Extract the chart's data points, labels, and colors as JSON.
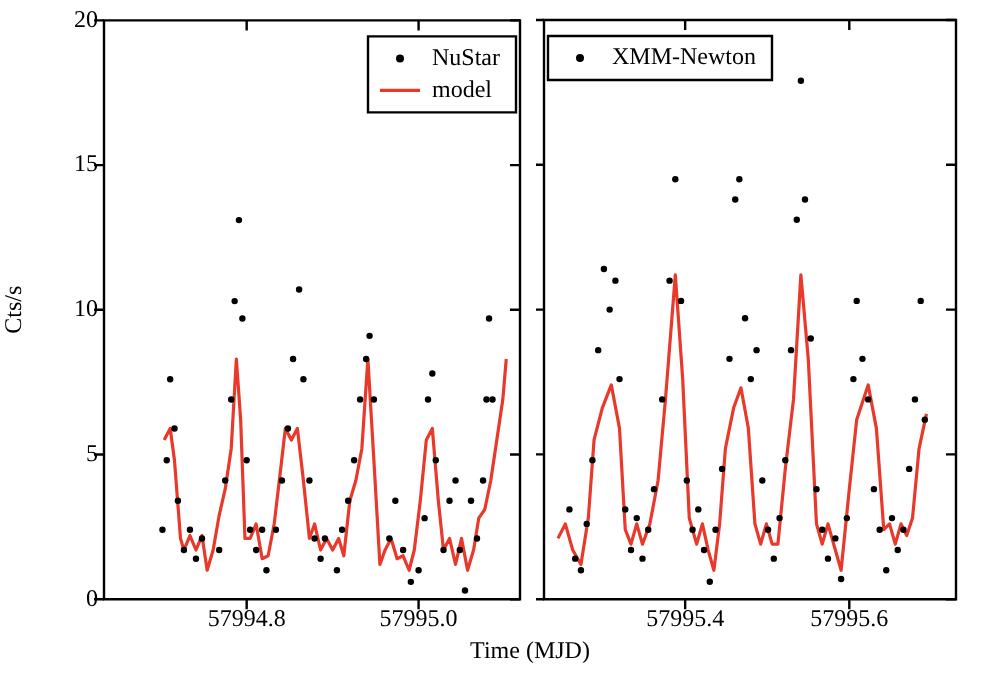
{
  "chart_data": [
    {
      "type": "scatter",
      "ylabel": "Cts/s",
      "xlabel": "Time (MJD)",
      "xlim": [
        57994.634,
        57995.118
      ],
      "xticks": [
        {
          "value": 57994.8,
          "label": "57994.8"
        },
        {
          "value": 57995,
          "label": "57995.0"
        }
      ],
      "ylim": [
        0,
        20
      ],
      "yticks": [
        0,
        5,
        10,
        15,
        20
      ],
      "legend": "top right",
      "grid": false,
      "series": [
        {
          "name": "NuStar",
          "marker": "circle",
          "color": "#000000",
          "x": [
            57994.702,
            57994.707,
            57994.711,
            57994.716,
            57994.72,
            57994.727,
            57994.734,
            57994.741,
            57994.748,
            57994.768,
            57994.775,
            57994.782,
            57994.786,
            57994.791,
            57994.795,
            57994.8,
            57994.804,
            57994.811,
            57994.818,
            57994.823,
            57994.834,
            57994.841,
            57994.848,
            57994.854,
            57994.861,
            57994.866,
            57994.873,
            57994.879,
            57994.886,
            57994.891,
            57994.905,
            57994.911,
            57994.918,
            57994.925,
            57994.932,
            57994.939,
            57994.943,
            57994.948,
            57994.966,
            57994.973,
            57994.982,
            57994.991,
            57995.0,
            57995.007,
            57995.011,
            57995.016,
            57995.02,
            57995.029,
            57995.036,
            57995.043,
            57995.048,
            57995.054,
            57995.061,
            57995.068,
            57995.075,
            57995.079,
            57995.082,
            57995.086
          ],
          "values": [
            2.4,
            4.8,
            7.6,
            5.9,
            3.4,
            1.7,
            2.4,
            1.4,
            2.1,
            1.7,
            4.1,
            6.9,
            10.3,
            13.1,
            9.7,
            4.8,
            2.4,
            1.7,
            2.4,
            1.0,
            2.4,
            4.1,
            5.9,
            8.3,
            10.7,
            7.6,
            4.1,
            2.1,
            1.4,
            2.1,
            1.0,
            2.4,
            3.4,
            4.8,
            6.9,
            8.3,
            9.1,
            6.9,
            2.1,
            3.4,
            1.7,
            0.6,
            1.0,
            2.8,
            6.9,
            7.8,
            4.8,
            1.7,
            3.4,
            4.1,
            1.7,
            0.3,
            3.4,
            2.1,
            4.1,
            6.9,
            9.7,
            6.9
          ]
        },
        {
          "name": "model",
          "type": "line",
          "marker": "none",
          "color": "#e8392b",
          "x": [
            57994.704,
            57994.711,
            57994.716,
            57994.723,
            57994.727,
            57994.734,
            57994.741,
            57994.748,
            57994.754,
            57994.761,
            57994.768,
            57994.775,
            57994.782,
            57994.788,
            57994.793,
            57994.798,
            57994.804,
            57994.811,
            57994.818,
            57994.825,
            57994.832,
            57994.838,
            57994.845,
            57994.852,
            57994.859,
            57994.866,
            57994.873,
            57994.879,
            57994.886,
            57994.893,
            57994.9,
            57994.907,
            57994.913,
            57994.92,
            57994.927,
            57994.934,
            57994.941,
            57994.948,
            57994.955,
            57994.961,
            57994.968,
            57994.975,
            57994.982,
            57994.989,
            57994.995,
            57995.002,
            57995.009,
            57995.016,
            57995.023,
            57995.029,
            57995.036,
            57995.043,
            57995.05,
            57995.057,
            57995.064,
            57995.07,
            57995.077,
            57995.084,
            57995.091,
            57995.098,
            57995.102
          ],
          "values": [
            5.5,
            5.9,
            4.8,
            2.1,
            1.7,
            2.2,
            1.7,
            2.2,
            1.0,
            1.7,
            2.9,
            3.8,
            5.2,
            8.3,
            6.2,
            2.1,
            2.1,
            2.6,
            1.4,
            1.5,
            2.6,
            4.1,
            5.9,
            5.5,
            5.9,
            4.1,
            2.1,
            2.6,
            1.7,
            2.1,
            1.7,
            2.1,
            1.5,
            3.4,
            4.1,
            5.2,
            8.3,
            4.8,
            1.2,
            1.7,
            2.1,
            1.4,
            1.5,
            1.0,
            1.7,
            3.4,
            5.5,
            5.9,
            3.4,
            1.7,
            2.1,
            1.2,
            2.1,
            1.0,
            1.7,
            2.8,
            3.1,
            4.1,
            5.5,
            6.9,
            8.3
          ]
        }
      ]
    },
    {
      "type": "scatter",
      "xlim": [
        57995.228,
        57995.73
      ],
      "xticks": [
        {
          "value": 57995.4,
          "label": "57995.4"
        },
        {
          "value": 57995.6,
          "label": "57995.6"
        }
      ],
      "ylim": [
        0,
        20
      ],
      "yticks": [
        0,
        5,
        10,
        15,
        20
      ],
      "tick_labels": "x",
      "legend": "top left",
      "grid": false,
      "series": [
        {
          "name": "XMM-Newton",
          "marker": "circle",
          "color": "#000000",
          "x": [
            57995.259,
            57995.266,
            57995.273,
            57995.28,
            57995.287,
            57995.294,
            57995.301,
            57995.308,
            57995.315,
            57995.32,
            57995.327,
            57995.334,
            57995.341,
            57995.348,
            57995.355,
            57995.362,
            57995.372,
            57995.381,
            57995.388,
            57995.395,
            57995.402,
            57995.409,
            57995.416,
            57995.423,
            57995.43,
            57995.437,
            57995.445,
            57995.454,
            57995.461,
            57995.466,
            57995.473,
            57995.48,
            57995.487,
            57995.494,
            57995.501,
            57995.508,
            57995.515,
            57995.522,
            57995.529,
            57995.536,
            57995.541,
            57995.546,
            57995.553,
            57995.56,
            57995.567,
            57995.574,
            57995.583,
            57995.59,
            57995.597,
            57995.605,
            57995.609,
            57995.616,
            57995.623,
            57995.63,
            57995.637,
            57995.645,
            57995.652,
            57995.659,
            57995.666,
            57995.673,
            57995.68,
            57995.687,
            57995.692
          ],
          "values": [
            3.1,
            1.4,
            1.0,
            2.6,
            4.8,
            8.6,
            11.4,
            10.0,
            11.0,
            7.6,
            3.1,
            1.7,
            2.8,
            1.4,
            2.4,
            3.8,
            6.9,
            11.0,
            14.5,
            10.3,
            4.1,
            2.4,
            3.1,
            1.7,
            0.6,
            2.4,
            4.5,
            8.3,
            13.8,
            14.5,
            9.7,
            7.6,
            8.6,
            4.1,
            2.4,
            1.4,
            2.8,
            4.8,
            8.6,
            13.1,
            17.9,
            13.8,
            9.0,
            3.8,
            2.4,
            1.4,
            2.1,
            0.7,
            2.8,
            7.6,
            10.3,
            8.3,
            6.9,
            3.8,
            2.4,
            1.0,
            2.8,
            1.7,
            2.4,
            4.5,
            6.9,
            10.3,
            6.2
          ]
        },
        {
          "type": "line",
          "marker": "none",
          "color": "#e8392b",
          "x": [
            57995.245,
            57995.254,
            57995.263,
            57995.273,
            57995.282,
            57995.289,
            57995.299,
            57995.31,
            57995.32,
            57995.327,
            57995.334,
            57995.341,
            57995.348,
            57995.357,
            57995.367,
            57995.376,
            57995.388,
            57995.397,
            57995.405,
            57995.414,
            57995.421,
            57995.428,
            57995.435,
            57995.442,
            57995.449,
            57995.459,
            57995.468,
            57995.477,
            57995.485,
            57995.492,
            57995.499,
            57995.506,
            57995.513,
            57995.522,
            57995.532,
            57995.541,
            57995.55,
            57995.56,
            57995.567,
            57995.574,
            57995.583,
            57995.59,
            57995.6,
            57995.609,
            57995.623,
            57995.633,
            57995.642,
            57995.649,
            57995.656,
            57995.663,
            57995.67,
            57995.677,
            57995.685,
            57995.694
          ],
          "values": [
            2.1,
            2.6,
            1.7,
            1.2,
            2.8,
            5.5,
            6.6,
            7.4,
            5.9,
            2.4,
            1.9,
            2.6,
            1.9,
            2.6,
            4.1,
            6.9,
            11.2,
            7.6,
            2.8,
            1.9,
            2.6,
            1.7,
            1.0,
            2.6,
            5.2,
            6.6,
            7.3,
            5.9,
            2.6,
            1.9,
            2.6,
            1.9,
            1.9,
            4.5,
            6.9,
            11.2,
            8.3,
            2.6,
            1.9,
            2.6,
            1.7,
            1.0,
            3.8,
            6.2,
            7.4,
            5.9,
            2.4,
            2.6,
            1.9,
            2.6,
            2.2,
            2.8,
            5.2,
            6.4
          ]
        }
      ]
    }
  ]
}
